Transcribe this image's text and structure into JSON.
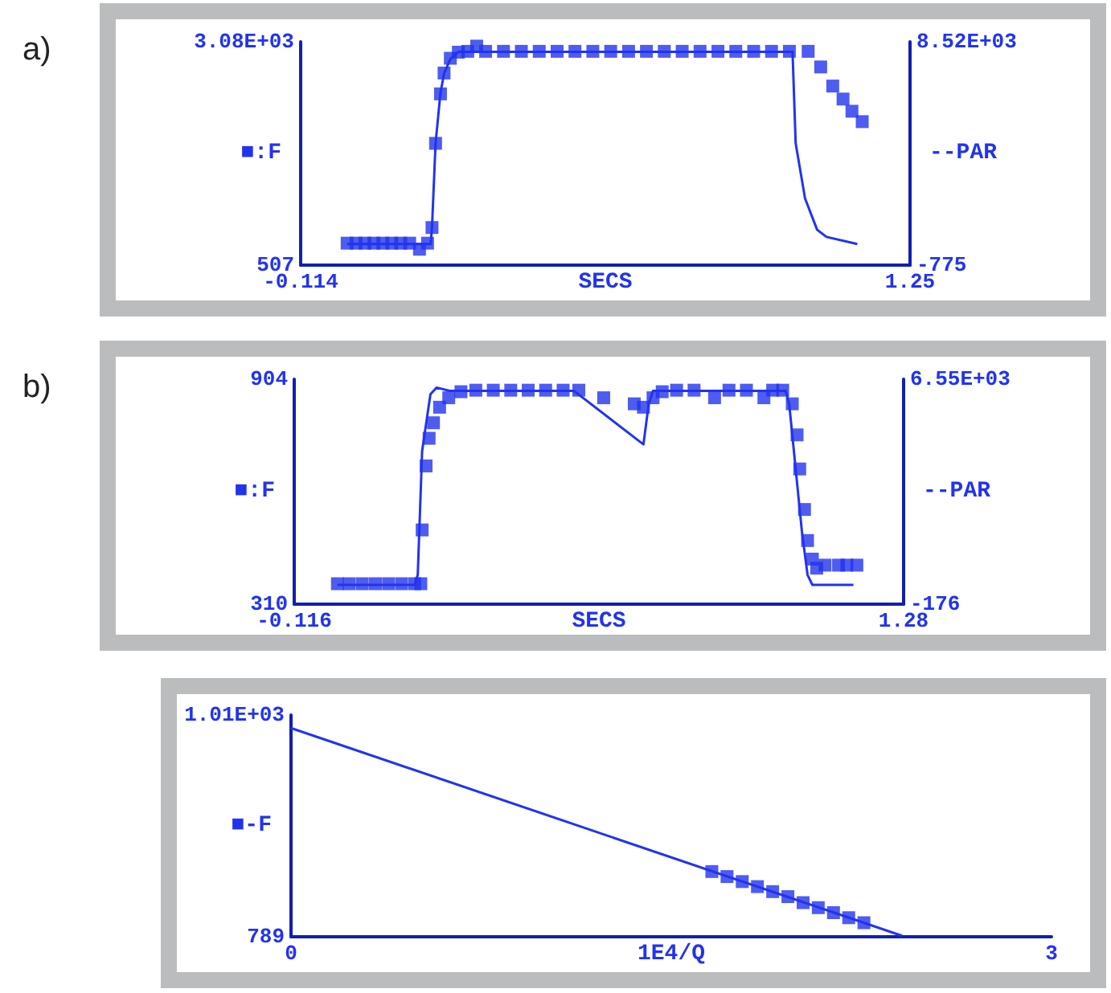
{
  "chart_data": [
    {
      "type": "line",
      "annotations": [
        "a)"
      ],
      "xlabel": "SECS",
      "ylabel": "■:F",
      "y2label": "--PAR",
      "xlim": [
        -0.114,
        1.25
      ],
      "xticks": [
        -0.114,
        1.25
      ],
      "ylim": [
        507,
        3080
      ],
      "yticks": [
        507,
        {
          "value": 3080,
          "label": "3.08E+03"
        }
      ],
      "y2lim": [
        -775,
        8520
      ],
      "y2ticks": [
        -775,
        {
          "value": 8520,
          "label": "8.52E+03"
        }
      ],
      "series": [
        {
          "type": "line",
          "axis": "y2",
          "marker": "none",
          "color": "#2233ee",
          "x": [
            -0.01,
            0.177,
            0.18,
            0.188,
            0.199,
            0.207,
            0.221,
            0.239,
            0.26,
            0.987,
            0.994,
            1.015,
            1.042,
            1.063,
            1.132
          ],
          "values": [
            100,
            100,
            800,
            4300,
            6400,
            7200,
            7800,
            8100,
            8100,
            8100,
            4300,
            2000,
            700,
            400,
            100
          ]
        },
        {
          "type": "scatter",
          "marker": "square",
          "color": "#2233ee",
          "x": [
            -0.01,
            0.01,
            0.03,
            0.05,
            0.07,
            0.09,
            0.11,
            0.13,
            0.152,
            0.17,
            0.18,
            0.188,
            0.199,
            0.207,
            0.221,
            0.239,
            0.26,
            0.28,
            0.3,
            0.34,
            0.38,
            0.42,
            0.46,
            0.5,
            0.54,
            0.58,
            0.62,
            0.66,
            0.7,
            0.74,
            0.78,
            0.82,
            0.86,
            0.9,
            0.94,
            0.98,
            1.022,
            1.05,
            1.077,
            1.1,
            1.12,
            1.143
          ],
          "values": [
            760,
            760,
            760,
            760,
            760,
            760,
            760,
            760,
            690,
            760,
            940,
            1910,
            2480,
            2720,
            2890,
            2960,
            2970,
            3030,
            2970,
            2970,
            2970,
            2970,
            2970,
            2970,
            2970,
            2970,
            2970,
            2970,
            2970,
            2970,
            2970,
            2970,
            2970,
            2970,
            2970,
            2970,
            2970,
            2790,
            2570,
            2420,
            2280,
            2160
          ]
        }
      ]
    },
    {
      "type": "line",
      "annotations": [
        "b)"
      ],
      "xlabel": "SECS",
      "ylabel": "■:F",
      "y2label": "--PAR",
      "xlim": [
        -0.116,
        1.28
      ],
      "xticks": [
        -0.116,
        1.28
      ],
      "ylim": [
        310,
        904
      ],
      "yticks": [
        310,
        904
      ],
      "y2lim": [
        -176,
        6550
      ],
      "y2ticks": [
        -176,
        {
          "value": 6550,
          "label": "6.55E+03"
        }
      ],
      "series": [
        {
          "type": "line",
          "axis": "y2",
          "marker": "none",
          "color": "#2233ee",
          "x": [
            -0.017,
            0.16,
            0.167,
            0.177,
            0.196,
            0.21,
            0.24,
            0.525,
            0.684,
            0.696,
            0.706,
            1.01,
            1.018,
            1.047,
            1.06,
            1.071,
            1.165
          ],
          "values": [
            400,
            400,
            700,
            4400,
            6100,
            6300,
            6200,
            6200,
            4600,
            5800,
            6200,
            6200,
            5800,
            2000,
            700,
            400,
            400
          ]
        },
        {
          "type": "scatter",
          "marker": "square",
          "color": "#2233ee",
          "x": [
            -0.017,
            0.01,
            0.04,
            0.07,
            0.1,
            0.13,
            0.16,
            0.174,
            0.177,
            0.186,
            0.193,
            0.203,
            0.217,
            0.238,
            0.266,
            0.3,
            0.34,
            0.38,
            0.42,
            0.46,
            0.5,
            0.536,
            0.593,
            0.663,
            0.684,
            0.706,
            0.727,
            0.76,
            0.8,
            0.847,
            0.88,
            0.92,
            0.96,
            0.98,
            1.003,
            1.025,
            1.036,
            1.042,
            1.053,
            1.06,
            1.071,
            1.081,
            1.1,
            1.131,
            1.15,
            1.173
          ],
          "values": [
            364,
            364,
            364,
            364,
            364,
            364,
            364,
            364,
            506,
            675,
            748,
            789,
            830,
            855,
            871,
            875,
            875,
            875,
            875,
            875,
            875,
            875,
            855,
            839,
            830,
            855,
            871,
            875,
            875,
            855,
            875,
            875,
            855,
            875,
            875,
            839,
            757,
            667,
            560,
            478,
            429,
            405,
            413,
            413,
            413,
            413
          ]
        }
      ]
    },
    {
      "type": "line",
      "xlabel": "1E4/Q",
      "ylabel": "■-F",
      "xlim": [
        0,
        3
      ],
      "xticks": [
        0,
        3
      ],
      "ylim": [
        789,
        1010
      ],
      "yticks": [
        789,
        {
          "value": 1010,
          "label": "1.01E+03"
        }
      ],
      "series": [
        {
          "type": "line",
          "marker": "none",
          "color": "#2233ee",
          "x": [
            0,
            2.41
          ],
          "values": [
            997,
            790
          ]
        },
        {
          "type": "scatter",
          "marker": "square",
          "color": "#2233ee",
          "x": [
            1.66,
            1.72,
            1.78,
            1.84,
            1.9,
            1.96,
            2.02,
            2.08,
            2.14,
            2.2,
            2.26
          ],
          "values": [
            854,
            849,
            844,
            839,
            834,
            829,
            823,
            818,
            813,
            808,
            803
          ]
        }
      ]
    }
  ]
}
